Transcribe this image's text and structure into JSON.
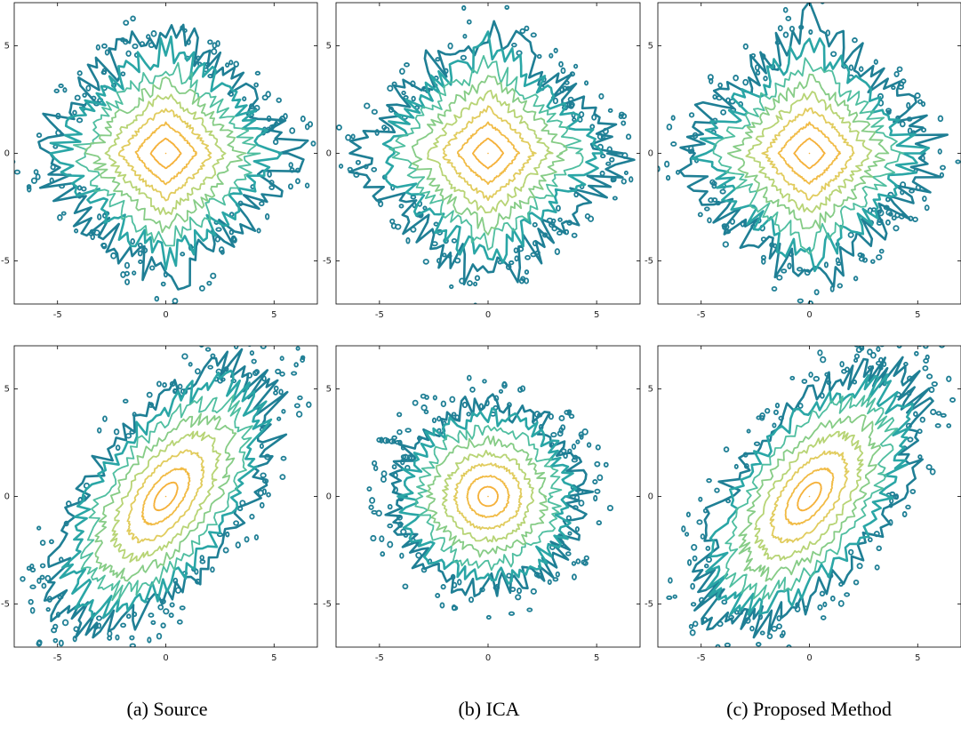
{
  "captions": [
    "(a)  Source",
    "(b)  ICA",
    "(c)  Proposed Method"
  ],
  "colors": {
    "levels": [
      "#1f7f95",
      "#2aa6a6",
      "#4fbea0",
      "#86cc86",
      "#b7d475",
      "#e1cc5e",
      "#f1bb45",
      "#f5b13a"
    ],
    "axis": "#000000"
  },
  "chart_data": [
    {
      "type": "contour",
      "xlim": [
        -7,
        7
      ],
      "ylim": [
        -7,
        7
      ],
      "xticks": [
        -5,
        0,
        5
      ],
      "yticks": [
        -5,
        0,
        5
      ],
      "shape": "diamond",
      "levels": [
        6.0,
        5.0,
        4.2,
        3.5,
        2.8,
        2.1,
        1.4,
        0.7
      ],
      "correlation": 0,
      "spread": [
        1.0,
        1.0
      ],
      "noise": 0.35
    },
    {
      "type": "contour",
      "xlim": [
        -7,
        7
      ],
      "ylim": [
        -7,
        7
      ],
      "xticks": [
        -5,
        0,
        5
      ],
      "yticks": [
        -5,
        0,
        5
      ],
      "shape": "diamond",
      "levels": [
        6.0,
        5.0,
        4.2,
        3.5,
        2.8,
        2.1,
        1.4,
        0.7
      ],
      "correlation": 0,
      "spread": [
        1.0,
        1.0
      ],
      "noise": 0.35
    },
    {
      "type": "contour",
      "xlim": [
        -7,
        7
      ],
      "ylim": [
        -7,
        7
      ],
      "xticks": [
        -5,
        0,
        5
      ],
      "yticks": [
        -5,
        0,
        5
      ],
      "shape": "diamond",
      "levels": [
        6.0,
        5.0,
        4.2,
        3.5,
        2.8,
        2.1,
        1.4,
        0.7
      ],
      "correlation": 0,
      "spread": [
        1.0,
        1.0
      ],
      "noise": 0.35
    },
    {
      "type": "contour",
      "xlim": [
        -7,
        7
      ],
      "ylim": [
        -7,
        7
      ],
      "xticks": [
        -5,
        0,
        5
      ],
      "yticks": [
        -5,
        0,
        5
      ],
      "shape": "ellipse",
      "levels": [
        4.6,
        4.0,
        3.4,
        2.8,
        2.2,
        1.6,
        1.0,
        0.5
      ],
      "correlation": 0.55,
      "spread": [
        1.0,
        1.25
      ],
      "noise": 0.3
    },
    {
      "type": "contour",
      "xlim": [
        -7,
        7
      ],
      "ylim": [
        -7,
        7
      ],
      "xticks": [
        -5,
        0,
        5
      ],
      "yticks": [
        -5,
        0,
        5
      ],
      "shape": "ellipse",
      "levels": [
        4.2,
        3.7,
        3.1,
        2.6,
        2.0,
        1.5,
        0.95,
        0.45
      ],
      "correlation": 0,
      "spread": [
        1.0,
        1.0
      ],
      "noise": 0.3
    },
    {
      "type": "contour",
      "xlim": [
        -7,
        7
      ],
      "ylim": [
        -7,
        7
      ],
      "xticks": [
        -5,
        0,
        5
      ],
      "yticks": [
        -5,
        0,
        5
      ],
      "shape": "ellipse",
      "levels": [
        4.6,
        4.0,
        3.4,
        2.8,
        2.2,
        1.6,
        1.0,
        0.5
      ],
      "correlation": 0.55,
      "spread": [
        1.0,
        1.25
      ],
      "noise": 0.3
    }
  ]
}
